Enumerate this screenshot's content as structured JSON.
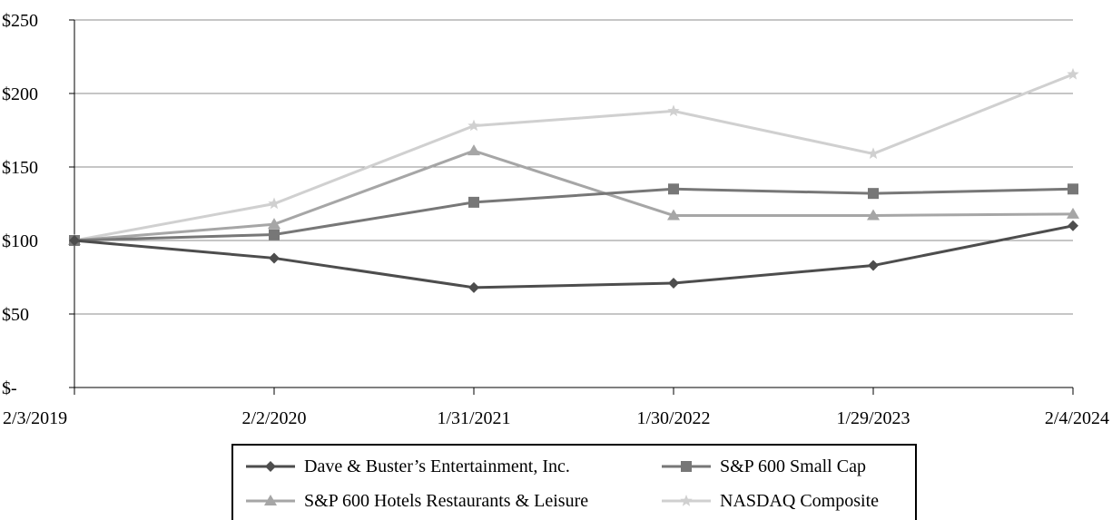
{
  "chart_data": {
    "type": "line",
    "categories": [
      "2/3/2019",
      "2/2/2020",
      "1/31/2021",
      "1/30/2022",
      "1/29/2023",
      "2/4/2024"
    ],
    "ylim": [
      0,
      250
    ],
    "yticks": [
      0,
      50,
      100,
      150,
      200,
      250
    ],
    "ytick_labels": [
      "$-",
      "$50",
      "$100",
      "$150",
      "$200",
      "$250"
    ],
    "grid": "horizontal",
    "legend_position": "bottom",
    "series": [
      {
        "name": "Dave & Buster’s Entertainment, Inc.",
        "values": [
          100,
          88,
          68,
          71,
          83,
          110
        ],
        "color": "#4d4d4d",
        "marker": "diamond"
      },
      {
        "name": "S&P 600 Small Cap",
        "values": [
          100,
          104,
          126,
          135,
          132,
          135
        ],
        "color": "#777777",
        "marker": "square"
      },
      {
        "name": "S&P 600 Hotels Restaurants & Leisure",
        "values": [
          100,
          111,
          161,
          117,
          117,
          118
        ],
        "color": "#a6a6a6",
        "marker": "triangle"
      },
      {
        "name": "NASDAQ Composite",
        "values": [
          100,
          125,
          178,
          188,
          159,
          213
        ],
        "color": "#d0d0d0",
        "marker": "star"
      }
    ]
  }
}
